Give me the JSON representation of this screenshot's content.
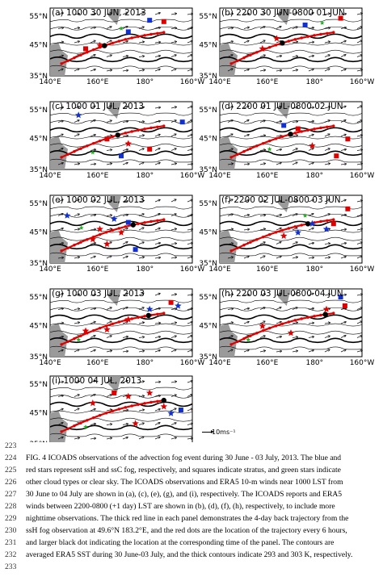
{
  "panels": [
    {
      "title": "(a) 1000 30 JUN, 2013",
      "traj_end": 0.42,
      "obs": [
        [
          0.55,
          0.35,
          "blue-sq"
        ],
        [
          0.7,
          0.18,
          "blue-sq"
        ],
        [
          0.35,
          0.55,
          "red-star"
        ],
        [
          0.8,
          0.2,
          "red-sq"
        ],
        [
          0.5,
          0.3,
          "green-star"
        ],
        [
          0.25,
          0.6,
          "red-sq"
        ]
      ]
    },
    {
      "title": "(b) 2200 30 JUN-0800 01 JUN",
      "traj_end": 0.5,
      "obs": [
        [
          0.6,
          0.25,
          "blue-sq"
        ],
        [
          0.72,
          0.22,
          "green-star"
        ],
        [
          0.4,
          0.45,
          "red-star"
        ],
        [
          0.85,
          0.15,
          "red-sq"
        ],
        [
          0.3,
          0.6,
          "red-star"
        ]
      ]
    },
    {
      "title": "(c) 1000 01 JUL, 2013",
      "traj_end": 0.55,
      "obs": [
        [
          0.2,
          0.2,
          "blue-star"
        ],
        [
          0.93,
          0.3,
          "blue-sq"
        ],
        [
          0.4,
          0.55,
          "red-sq"
        ],
        [
          0.55,
          0.62,
          "red-star"
        ],
        [
          0.5,
          0.8,
          "blue-sq"
        ],
        [
          0.7,
          0.7,
          "red-sq"
        ],
        [
          0.3,
          0.75,
          "green-star"
        ]
      ]
    },
    {
      "title": "(d) 2200 01 JUL-0800 02 JUN",
      "traj_end": 0.58,
      "obs": [
        [
          0.45,
          0.35,
          "blue-sq"
        ],
        [
          0.55,
          0.4,
          "red-sq"
        ],
        [
          0.35,
          0.7,
          "green-star"
        ],
        [
          0.82,
          0.8,
          "red-sq"
        ],
        [
          0.9,
          0.55,
          "red-sq"
        ],
        [
          0.65,
          0.65,
          "red-star"
        ]
      ]
    },
    {
      "title": "(e) 1000 02 JUL, 2013",
      "traj_end": 0.7,
      "obs": [
        [
          0.12,
          0.3,
          "blue-star"
        ],
        [
          0.45,
          0.35,
          "blue-star"
        ],
        [
          0.55,
          0.4,
          "blue-sq"
        ],
        [
          0.35,
          0.5,
          "red-star"
        ],
        [
          0.5,
          0.55,
          "red-star"
        ],
        [
          0.3,
          0.65,
          "red-star"
        ],
        [
          0.4,
          0.72,
          "red-star"
        ],
        [
          0.6,
          0.8,
          "blue-sq"
        ],
        [
          0.22,
          0.48,
          "green-star"
        ]
      ]
    },
    {
      "title": "(f) 2200 02 JUL-0800 03 JUN",
      "traj_end": 0.75,
      "obs": [
        [
          0.55,
          0.55,
          "blue-star"
        ],
        [
          0.65,
          0.42,
          "blue-star"
        ],
        [
          0.75,
          0.5,
          "blue-star"
        ],
        [
          0.8,
          0.42,
          "red-sq"
        ],
        [
          0.9,
          0.2,
          "red-sq"
        ],
        [
          0.6,
          0.3,
          "green-star"
        ],
        [
          0.45,
          0.6,
          "red-star"
        ]
      ]
    },
    {
      "title": "(g) 1000 03 JUL, 2013",
      "traj_end": 0.85,
      "obs": [
        [
          0.85,
          0.2,
          "red-sq"
        ],
        [
          0.9,
          0.25,
          "blue-star"
        ],
        [
          0.55,
          0.45,
          "red-star"
        ],
        [
          0.4,
          0.6,
          "red-star"
        ],
        [
          0.25,
          0.62,
          "red-star"
        ],
        [
          0.2,
          0.75,
          "green-star"
        ],
        [
          0.7,
          0.3,
          "blue-star"
        ]
      ]
    },
    {
      "title": "(h) 2200 03 JUL-0800 04 JUN",
      "traj_end": 0.92,
      "obs": [
        [
          0.88,
          0.25,
          "red-sq"
        ],
        [
          0.75,
          0.3,
          "red-star"
        ],
        [
          0.5,
          0.65,
          "red-star"
        ],
        [
          0.3,
          0.55,
          "red-star"
        ],
        [
          0.2,
          0.75,
          "green-star"
        ],
        [
          0.85,
          0.12,
          "blue-sq"
        ]
      ]
    },
    {
      "title": "(i) 1000 04 JUL, 2013",
      "traj_end": 1.0,
      "obs": [
        [
          0.45,
          0.25,
          "red-sq"
        ],
        [
          0.7,
          0.25,
          "red-star"
        ],
        [
          0.8,
          0.45,
          "red-star"
        ],
        [
          0.55,
          0.3,
          "red-star"
        ],
        [
          0.3,
          0.4,
          "red-star"
        ],
        [
          0.6,
          0.7,
          "red-star"
        ],
        [
          0.85,
          0.55,
          "blue-star"
        ],
        [
          0.92,
          0.5,
          "blue-sq"
        ],
        [
          0.25,
          0.75,
          "green-star"
        ]
      ]
    }
  ],
  "axes": {
    "lat_ticks": [
      "55°N",
      "45°N",
      "35°N"
    ],
    "lon_ticks": [
      "140°E",
      "160°E",
      "180°",
      "160°W"
    ]
  },
  "scale": {
    "label": "→10ms⁻¹"
  },
  "caption": [
    {
      "n": "223",
      "text": ""
    },
    {
      "n": "224",
      "text": "FIG. 4 ICOADS observations of the advection fog event during 30 June - 03 July, 2013. The blue and"
    },
    {
      "n": "225",
      "text": "red stars represent ssH and ssC fog, respectively, and squares indicate stratus, and green stars indicate"
    },
    {
      "n": "226",
      "text": "other cloud types or clear sky. The ICOADS observations and ERA5 10-m winds near 1000 LST from"
    },
    {
      "n": "227",
      "text": "30 June to 04 July are shown in (a), (c), (e), (g), and (i), respectively. The ICOADS reports and ERA5"
    },
    {
      "n": "228",
      "text": "winds between 2200-0800 (+1 day) LST are shown in (b), (d), (f), (h), respectively, to include more"
    },
    {
      "n": "229",
      "text": "nighttime observations. The thick red line in each panel demonstrates the 4-day back trajectory from the"
    },
    {
      "n": "230",
      "text": "ssH fog observation at 49.6°N 183.2°E, and the red dots are the location of the trajectory every 6 hours,"
    },
    {
      "n": "231",
      "text": "and larger black dot indicating the location at the corresponding time of the panel. The contours are"
    },
    {
      "n": "232",
      "text": "averaged ERA5 SST during 30 June-03 July, and the thick contours indicate 293 and 303 K, respectively."
    },
    {
      "n": "233",
      "text": ""
    }
  ]
}
